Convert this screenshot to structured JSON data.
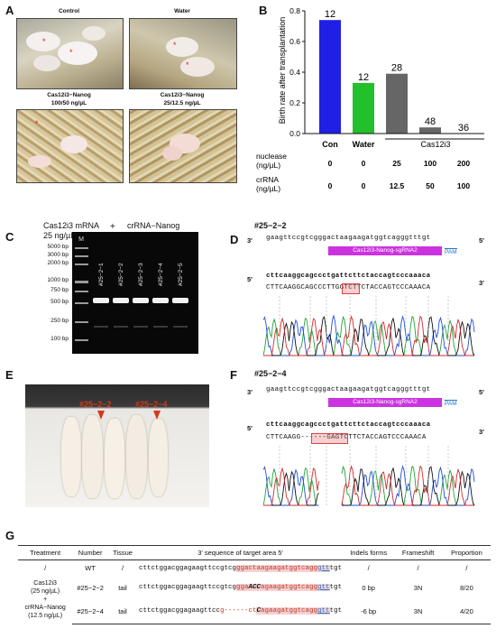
{
  "panels": {
    "A": "A",
    "B": "B",
    "C": "C",
    "D": "D",
    "E": "E",
    "F": "F",
    "G": "G"
  },
  "panelA": {
    "photos": [
      {
        "caption": "Control"
      },
      {
        "caption": "Water"
      },
      {
        "caption": "Cas12i3−Nanog\n100/50 ng/µL"
      },
      {
        "caption": "Cas12i3−Nanog\n25/12.5 ng/µL"
      }
    ]
  },
  "chart_data": {
    "type": "bar",
    "ylabel": "Birth rate after transplantation",
    "ylim": [
      0,
      0.8
    ],
    "yticks": [
      "0.0",
      "0.2",
      "0.4",
      "0.6",
      "0.8"
    ],
    "categories": [
      "Con",
      "Water",
      "",
      "",
      ""
    ],
    "values": [
      0.74,
      0.33,
      0.39,
      0.04,
      0.0
    ],
    "bar_labels": [
      "12",
      "12",
      "28",
      "48",
      "36"
    ],
    "colors": [
      "#1f1fe6",
      "#22c02a",
      "#666666",
      "#666666",
      "#666666"
    ],
    "group_label": "Cas12i3",
    "nuclease_label": "nuclease\n(ng/µL)",
    "crRNA_label": "crRNA\n(ng/µL)",
    "nuclease": [
      "0",
      "0",
      "25",
      "100",
      "200"
    ],
    "crRNA": [
      "0",
      "0",
      "12.5",
      "50",
      "100"
    ]
  },
  "panelC": {
    "left_title": "Cas12i3 mRNA\n25 ng/µL",
    "plus": "+",
    "right_title": "crRNA−Nanog\n12.5 ng/µL",
    "marker": "M",
    "ladder": [
      "5000 bp",
      "3000 bp",
      "2000 bp",
      "1000 bp",
      "750 bp",
      "500 bp",
      "250 bp",
      "100 bp"
    ],
    "lanes": [
      "#25−2−1",
      "#25−2−2",
      "#25−2−3",
      "#25−2−4",
      "#25−2−5"
    ]
  },
  "panelD": {
    "title": "#25−2−2",
    "top_seq": "gaagttccgtcgggactaagaagatggtcagggtttgt",
    "top_left": "3'",
    "top_right": "5'",
    "sgRNA": "Cas12i3-Nanog-sgRNA2",
    "pam": "PAM",
    "ref_seq": "cttcaaggcagccctgattcttctaccagtcccaaaca",
    "ref_left": "5'",
    "ref_right": "3'",
    "read_seq": "CTTCAAGGCAGCCCTTGGTCTTCTACCAGTCCCAAACA"
  },
  "panelE": {
    "arrow1": "#25−2−2",
    "arrow2": "#25−2−4"
  },
  "panelF": {
    "title": "#25−2−4",
    "top_seq": "gaagttccgtcgggactaagaagatggtcagggtttgt",
    "top_left": "3'",
    "top_right": "5'",
    "sgRNA": "Cas12i3-Nanog-sgRNA2",
    "pam": "PAM",
    "ref_seq": "cttcaaggcagccctgattcttctaccagtcccaaaca",
    "ref_left": "5'",
    "ref_right": "3'",
    "read_seq": "CTTCAAGG------GAGTCTTCTACCAGTCCCAAACA"
  },
  "tableG": {
    "headers": [
      "Treatment",
      "Number",
      "Tissue",
      "3' sequence of target area 5'",
      "Indels forms",
      "Frameshift",
      "Proportion"
    ],
    "row_wt": [
      "/",
      "WT",
      "/",
      "/",
      "/",
      "/"
    ],
    "treatment_1": "Cas12i3\n(25 ng/µL)",
    "treatment_plus": "+",
    "treatment_2": "crRNA−Nanog\n(12.5 ng/µL)",
    "row1": [
      "#25−2−2",
      "tail",
      "0 bp",
      "3N",
      "8/20"
    ],
    "row2": [
      "#25−2−4",
      "tail",
      "-6 bp",
      "3N",
      "4/20"
    ],
    "seq_wt": {
      "a": "cttctggacggagaagttccgtcg",
      "b": "ggactaagaagatggtcagg",
      "c": "gtt",
      "d": "tgt"
    },
    "seq_1": {
      "a": "cttctggacggagaagttccgtcg",
      "b": "gga",
      "ins": "ACC",
      "b2": "agaagatggtcagg",
      "c": "gtt",
      "d": "tgt"
    },
    "seq_2": {
      "a": "cttctggacggagaagttcc",
      "del": "g------ct",
      "ins": "C",
      "b2": "agaagatggtcagg",
      "c": "gtt",
      "d": "tgt"
    }
  }
}
